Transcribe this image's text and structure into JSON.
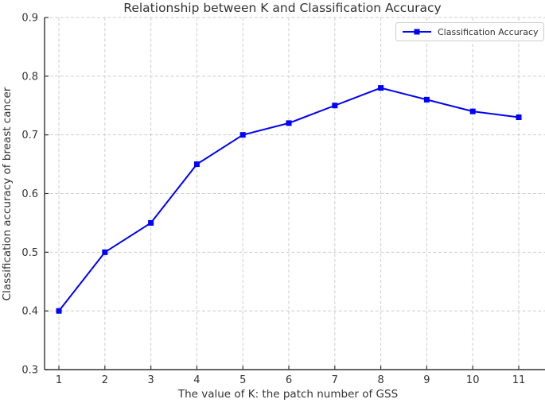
{
  "chart_data": {
    "type": "line",
    "title": "Relationship between K and Classification Accuracy",
    "xlabel": "The value of K: the patch number of GSS",
    "ylabel": "Classification accuracy of breast cancer",
    "x": [
      1,
      2,
      3,
      4,
      5,
      6,
      7,
      8,
      9,
      10,
      11
    ],
    "series": [
      {
        "name": "Classification Accuracy",
        "values": [
          0.4,
          0.5,
          0.55,
          0.65,
          0.7,
          0.72,
          0.75,
          0.78,
          0.76,
          0.74,
          0.73
        ],
        "color": "#0000ff",
        "marker": "square",
        "linestyle": "solid"
      }
    ],
    "xticks": [
      1,
      2,
      3,
      4,
      5,
      6,
      7,
      8,
      9,
      10,
      11
    ],
    "yticks": [
      0.3,
      0.4,
      0.5,
      0.6,
      0.7,
      0.8,
      0.9
    ],
    "xlim": [
      0.688,
      11.571
    ],
    "ylim": [
      0.3,
      0.9
    ],
    "grid": true,
    "grid_style": "dashed",
    "legend_position": "upper right"
  },
  "colors": {
    "line": "#0000ff",
    "grid": "#cdcdcd",
    "spine": "#333333",
    "text": "#333333",
    "legend_border": "#cccccc",
    "background": "#ffffff"
  }
}
